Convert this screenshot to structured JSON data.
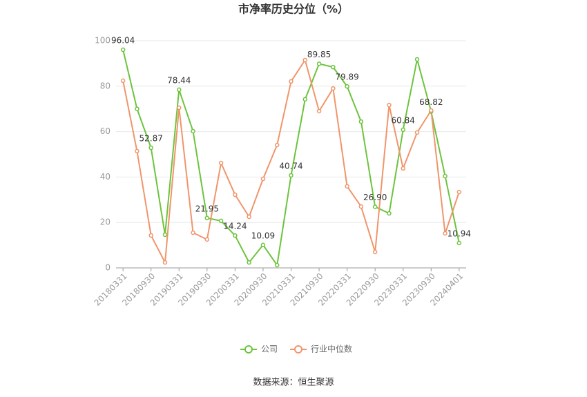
{
  "chart_data": {
    "type": "line",
    "title": "市净率历史分位（%）",
    "categories": [
      "20180331",
      null,
      "20180930",
      null,
      "20190331",
      null,
      "20190930",
      null,
      "20200331",
      null,
      "20200930",
      null,
      "20210331",
      null,
      "20210930",
      null,
      "20220331",
      null,
      "20220930",
      null,
      "20230331",
      null,
      "20230930",
      null,
      "20240401"
    ],
    "series": [
      {
        "name": "公司",
        "color": "#6cc43c",
        "values": [
          96.04,
          70,
          52.87,
          14.6,
          78.44,
          60.2,
          21.95,
          20.7,
          14.24,
          2.4,
          10.09,
          1.2,
          40.74,
          74.2,
          89.85,
          88.4,
          79.89,
          64.4,
          26.9,
          24,
          60.84,
          91.8,
          68.82,
          40.4,
          10.94
        ],
        "value_labels": [
          "96.04",
          null,
          "52.87",
          null,
          "78.44",
          null,
          "21.95",
          null,
          "14.24",
          null,
          "10.09",
          null,
          "40.74",
          null,
          "89.85",
          null,
          "79.89",
          null,
          "26.90",
          null,
          "60.84",
          null,
          "68.82",
          null,
          "10.94"
        ]
      },
      {
        "name": "行业中位数",
        "color": "#f0956b",
        "values": [
          82.4,
          51.4,
          14.3,
          2.4,
          70.5,
          15.5,
          12.5,
          46.2,
          32.2,
          22.5,
          39.2,
          54.1,
          82.1,
          91.5,
          69,
          79,
          35.9,
          27,
          7,
          71.7,
          43.8,
          59.6,
          69.3,
          15.2,
          33.4
        ]
      }
    ],
    "ylim": [
      0,
      100
    ],
    "yticks": [
      0,
      20,
      40,
      60,
      80,
      100
    ],
    "grid": true,
    "source": "数据来源：恒生聚源"
  }
}
